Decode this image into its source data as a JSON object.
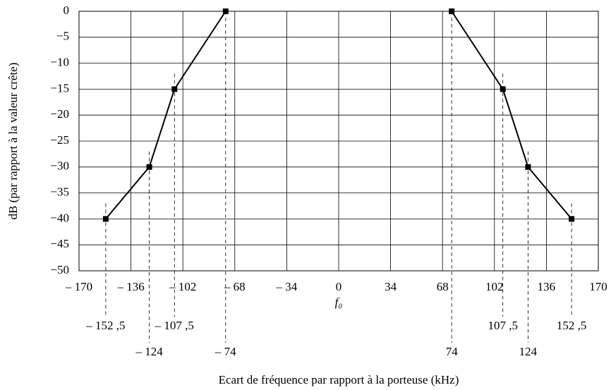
{
  "chart_data": {
    "type": "line",
    "xlabel": "Ecart de fréquence par rapport à la porteuse (kHz)",
    "ylabel": "dB (par rapport à la valeur crête)",
    "annotations": [
      "f₀"
    ],
    "series": [
      {
        "color": "#000000",
        "x": [
          -152.5,
          -124,
          -107.5,
          -74
        ],
        "values": [
          -40,
          -30,
          -15,
          0
        ],
        "x_labels": [
          "– 152 ,5",
          "– 124",
          "– 107 ,5",
          "– 74"
        ]
      },
      {
        "color": "#000000",
        "x": [
          74,
          107.5,
          124,
          152.5
        ],
        "values": [
          0,
          -15,
          -30,
          -40
        ],
        "x_labels": [
          "74",
          "107 ,5",
          "124",
          "152 ,5"
        ]
      }
    ],
    "xlim": [
      -170,
      170
    ],
    "xticks": [
      {
        "value": -170,
        "label": "– 170"
      },
      {
        "value": -136,
        "label": "– 136"
      },
      {
        "value": -102,
        "label": "– 102"
      },
      {
        "value": -68,
        "label": "– 68"
      },
      {
        "value": -34,
        "label": "– 34"
      },
      0,
      34,
      68,
      102,
      136,
      170
    ],
    "ylim": [
      -50,
      0
    ],
    "yticks": [
      0,
      {
        "value": -5,
        "label": "−5"
      },
      {
        "value": -10,
        "label": "−10"
      },
      {
        "value": -15,
        "label": "−15"
      },
      {
        "value": -20,
        "label": "−20"
      },
      {
        "value": -25,
        "label": "−25"
      },
      {
        "value": -30,
        "label": "−30"
      },
      {
        "value": -35,
        "label": "−35"
      },
      {
        "value": -40,
        "label": "−40"
      },
      {
        "value": -45,
        "label": "−45"
      },
      {
        "value": -50,
        "label": "−50"
      }
    ],
    "grid": true
  }
}
